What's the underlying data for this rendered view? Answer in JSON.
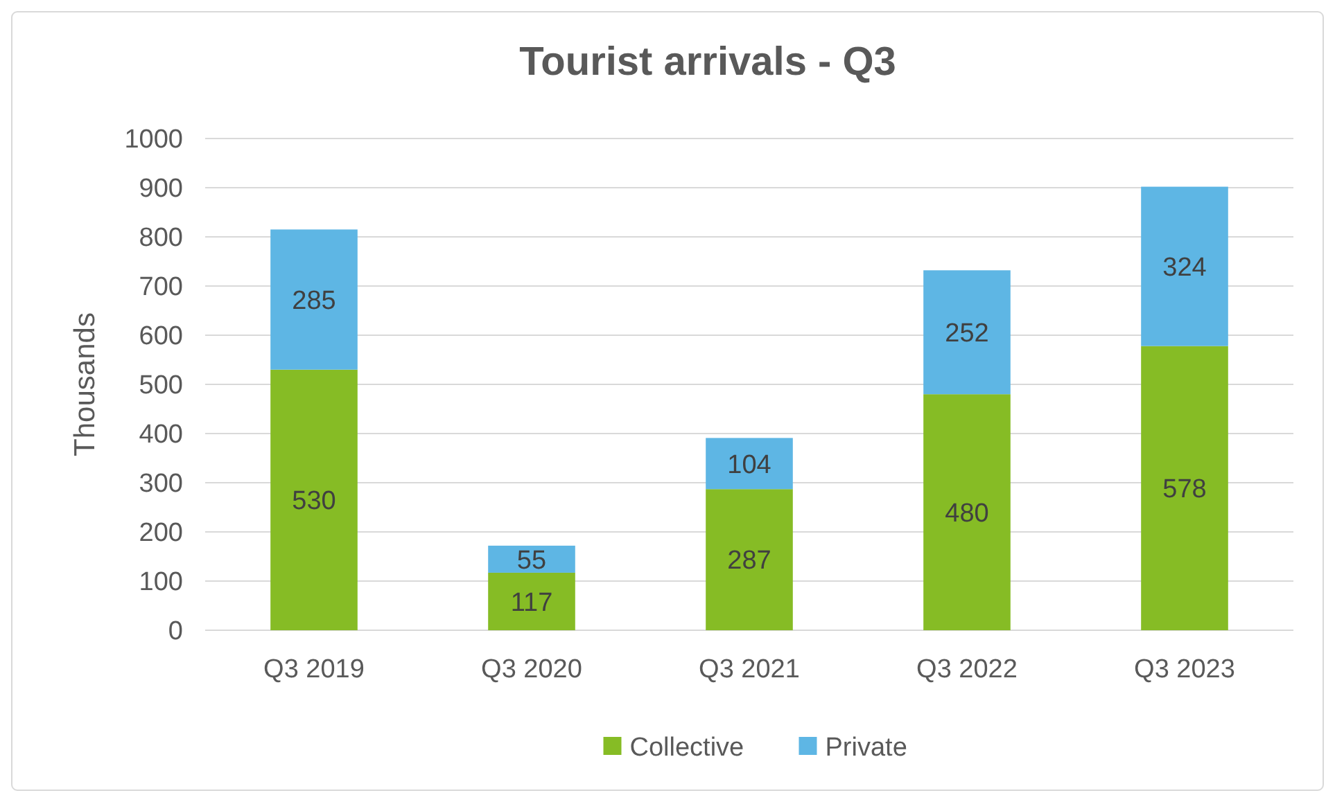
{
  "chart_data": {
    "type": "bar",
    "title": "Tourist arrivals - Q3",
    "ylabel": "Thousands",
    "categories": [
      "Q3 2019",
      "Q3 2020",
      "Q3 2021",
      "Q3 2022",
      "Q3 2023"
    ],
    "series": [
      {
        "name": "Collective",
        "color": "#86bc25",
        "values": [
          530,
          117,
          287,
          480,
          578
        ]
      },
      {
        "name": "Private",
        "color": "#5eb6e4",
        "values": [
          285,
          55,
          104,
          252,
          324
        ]
      }
    ],
    "stacked": true,
    "data_labels": true,
    "ylim": [
      0,
      1000
    ],
    "yticks": [
      0,
      100,
      200,
      300,
      400,
      500,
      600,
      700,
      800,
      900,
      1000
    ],
    "grid": "y",
    "legend": "bottom"
  }
}
